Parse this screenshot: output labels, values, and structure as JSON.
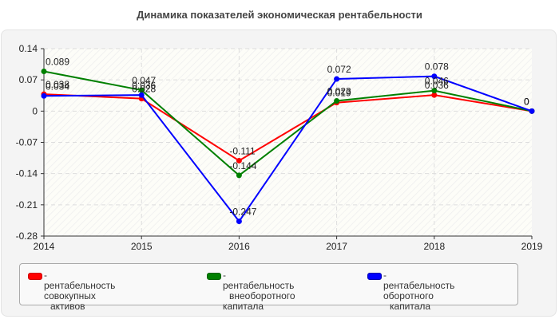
{
  "title": "Динамика показателей экономическая рентабельности",
  "chart_data": {
    "type": "line",
    "title": "Динамика показателей экономическая рентабельности",
    "xlabel": "",
    "ylabel": "",
    "x": [
      "2014",
      "2015",
      "2016",
      "2017",
      "2018",
      "2019"
    ],
    "ylim": [
      -0.28,
      0.14
    ],
    "yticks": [
      "0.14",
      "0.07",
      "0",
      "-0.07",
      "-0.14",
      "-0.21",
      "-0.28"
    ],
    "grid": true,
    "legend_position": "bottom",
    "series": [
      {
        "name": "рентабельность совокупных активов",
        "color": "#ff0000",
        "values": [
          0.038,
          0.028,
          -0.111,
          0.019,
          0.036,
          0
        ]
      },
      {
        "name": "рентабельность внеоборотного капитала",
        "color": "#008000",
        "values": [
          0.089,
          0.047,
          -0.144,
          0.023,
          0.046,
          0
        ]
      },
      {
        "name": "рентабельность оборотного капитала",
        "color": "#0000ff",
        "values": [
          0.034,
          0.036,
          -0.247,
          0.072,
          0.078,
          0
        ]
      }
    ]
  },
  "legend": [
    {
      "line1": "- рентабельность совокупных",
      "line2": "активов",
      "color": "#ff0000"
    },
    {
      "line1": "- рентабельность",
      "line2": "внеоборотного капитала",
      "color": "#008000"
    },
    {
      "line1": "- рентабельность оборотного",
      "line2": "капитала",
      "color": "#0000ff"
    }
  ]
}
